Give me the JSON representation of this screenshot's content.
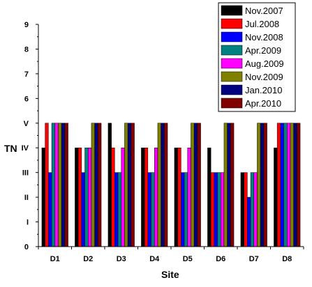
{
  "chart_data": {
    "type": "bar",
    "title": "",
    "xlabel": "Site",
    "ylabel": "TN",
    "ylim": [
      0,
      9
    ],
    "y_ticks": [
      {
        "value": 0,
        "label": "0"
      },
      {
        "value": 1,
        "label": "I"
      },
      {
        "value": 2,
        "label": "II"
      },
      {
        "value": 3,
        "label": "III"
      },
      {
        "value": 4,
        "label": "IV"
      },
      {
        "value": 5,
        "label": "V"
      },
      {
        "value": 6,
        "label": "6"
      },
      {
        "value": 7,
        "label": "7"
      },
      {
        "value": 8,
        "label": "8"
      },
      {
        "value": 9,
        "label": "9"
      }
    ],
    "categories": [
      "D1",
      "D2",
      "D3",
      "D4",
      "D5",
      "D6",
      "D7",
      "D8"
    ],
    "legend_position": "top-right",
    "grid": false,
    "series": [
      {
        "name": "Nov.2007",
        "color": "#000000",
        "values": [
          4,
          4,
          5,
          4,
          4,
          4,
          3,
          4
        ]
      },
      {
        "name": "Jul.2008",
        "color": "#ff0000",
        "values": [
          5,
          4,
          4,
          4,
          4,
          3,
          3,
          5
        ]
      },
      {
        "name": "Nov.2008",
        "color": "#0000ff",
        "values": [
          3,
          3,
          3,
          3,
          3,
          3,
          2,
          5
        ]
      },
      {
        "name": "Apr.2009",
        "color": "#008080",
        "values": [
          5,
          4,
          3,
          3,
          3,
          3,
          3,
          5
        ]
      },
      {
        "name": "Aug.2009",
        "color": "#ff00ff",
        "values": [
          5,
          4,
          4,
          4,
          4,
          3,
          3,
          5
        ]
      },
      {
        "name": "Nov.2009",
        "color": "#808000",
        "values": [
          5,
          5,
          5,
          5,
          5,
          5,
          5,
          5
        ]
      },
      {
        "name": "Jan.2010",
        "color": "#000080",
        "values": [
          5,
          5,
          5,
          5,
          5,
          5,
          5,
          5
        ]
      },
      {
        "name": "Apr.2010",
        "color": "#800000",
        "values": [
          5,
          5,
          5,
          5,
          5,
          5,
          5,
          5
        ]
      }
    ]
  }
}
